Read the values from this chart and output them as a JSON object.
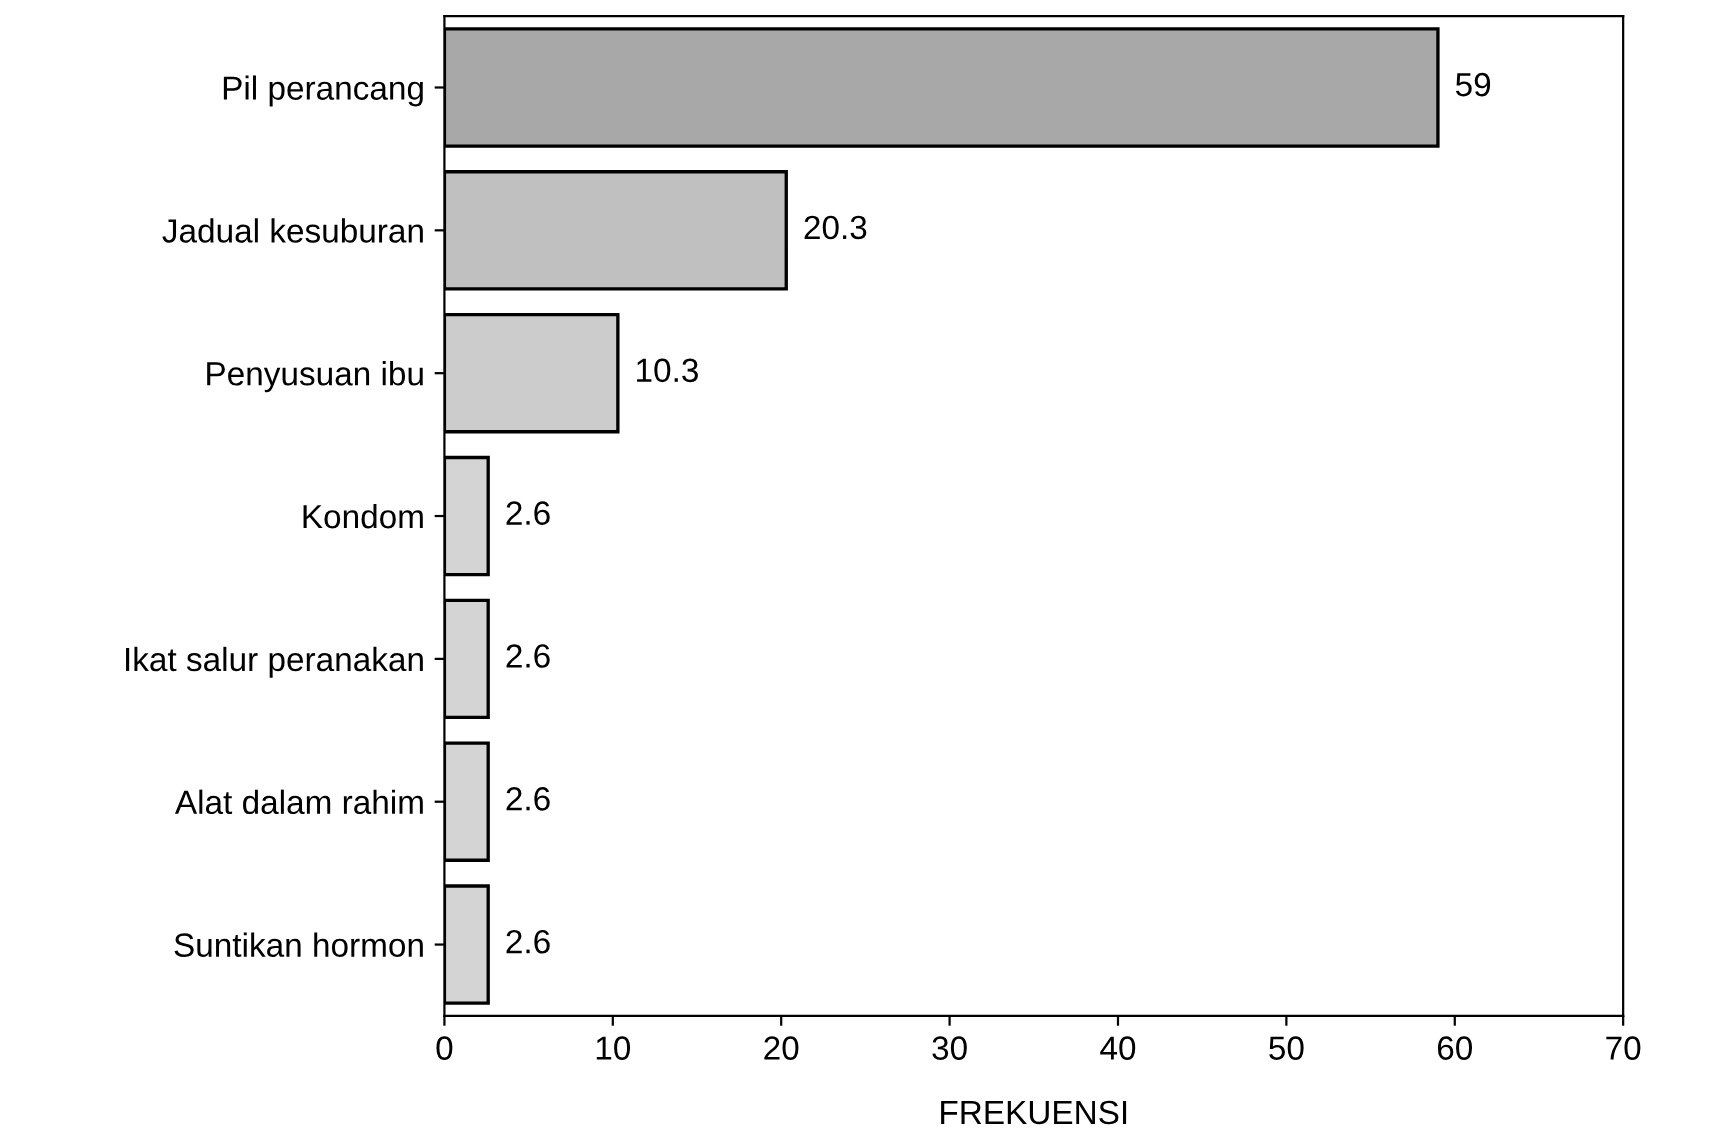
{
  "chart_data": {
    "type": "bar",
    "orientation": "horizontal",
    "xlabel": "FREKUENSI",
    "categories": [
      "Pil perancang",
      "Jadual kesuburan",
      "Penyusuan ibu",
      "Kondom",
      "Ikat salur peranakan",
      "Alat dalam rahim",
      "Suntikan hormon"
    ],
    "values": [
      59,
      20.3,
      10.3,
      2.6,
      2.6,
      2.6,
      2.6
    ],
    "colors": [
      "#a8a8a8",
      "#c0c0c0",
      "#cccccc",
      "#d4d4d4",
      "#d4d4d4",
      "#d4d4d4",
      "#d4d4d4"
    ],
    "xlim": [
      0,
      70
    ],
    "xticks": [
      0,
      10,
      20,
      30,
      40,
      50,
      60,
      70
    ],
    "grid": false,
    "data_labels": true
  }
}
